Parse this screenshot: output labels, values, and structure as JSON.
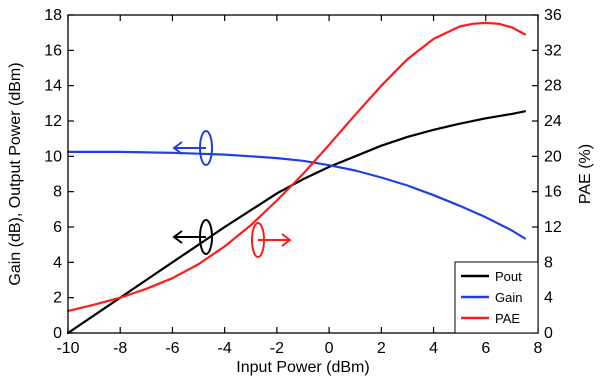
{
  "chart_data": {
    "type": "line",
    "title": "",
    "xlabel": "Input Power (dBm)",
    "ylabel": "Gain (dB), Output Power (dBm)",
    "y2label": "PAE (%)",
    "xlim": [
      -10,
      8
    ],
    "ylim": [
      0,
      18
    ],
    "y2lim": [
      0,
      36
    ],
    "x_ticks": [
      "-10",
      "-8",
      "-6",
      "-4",
      "-2",
      "0",
      "2",
      "4",
      "6",
      "8"
    ],
    "y_ticks": [
      "0",
      "2",
      "4",
      "6",
      "8",
      "10",
      "12",
      "14",
      "16",
      "18"
    ],
    "y2_ticks": [
      "0",
      "4",
      "8",
      "12",
      "16",
      "20",
      "24",
      "28",
      "32",
      "36"
    ],
    "grid": false,
    "legend_position": "bottom-right",
    "series": [
      {
        "name": "Pout",
        "color": "#000000",
        "axis": "left",
        "x": [
          -10,
          -9,
          -8,
          -7,
          -6,
          -5,
          -4,
          -3,
          -2,
          -1,
          0,
          1,
          2,
          3,
          4,
          5,
          6,
          7,
          7.5
        ],
        "y": [
          0,
          1.0,
          2.0,
          3.0,
          4.0,
          5.0,
          6.0,
          6.95,
          7.9,
          8.7,
          9.4,
          10.0,
          10.6,
          11.1,
          11.5,
          11.85,
          12.15,
          12.4,
          12.55
        ]
      },
      {
        "name": "Gain",
        "color": "#1f3fe6",
        "axis": "left",
        "x": [
          -10,
          -9,
          -8,
          -7,
          -6,
          -5,
          -4,
          -3,
          -2,
          -1,
          0,
          1,
          2,
          3,
          4,
          5,
          6,
          7,
          7.5
        ],
        "y": [
          10.25,
          10.25,
          10.25,
          10.22,
          10.2,
          10.15,
          10.1,
          10.0,
          9.9,
          9.75,
          9.5,
          9.2,
          8.8,
          8.35,
          7.8,
          7.2,
          6.55,
          5.8,
          5.35
        ]
      },
      {
        "name": "PAE",
        "color": "#ff1a1a",
        "axis": "right",
        "x": [
          -10,
          -9,
          -8,
          -7,
          -6,
          -5,
          -4,
          -3,
          -2,
          -1,
          0,
          1,
          2,
          3,
          4,
          5,
          5.5,
          6,
          6.5,
          7,
          7.5
        ],
        "y": [
          2.5,
          3.2,
          4.0,
          5.0,
          6.2,
          7.8,
          9.8,
          12.2,
          15.0,
          18.0,
          21.3,
          24.7,
          28.0,
          31.0,
          33.3,
          34.7,
          35.0,
          35.1,
          35.0,
          34.6,
          33.8
        ]
      }
    ],
    "annotations": [
      {
        "target": "Gain",
        "direction": "left"
      },
      {
        "target": "Pout",
        "direction": "left"
      },
      {
        "target": "PAE",
        "direction": "right"
      }
    ]
  }
}
